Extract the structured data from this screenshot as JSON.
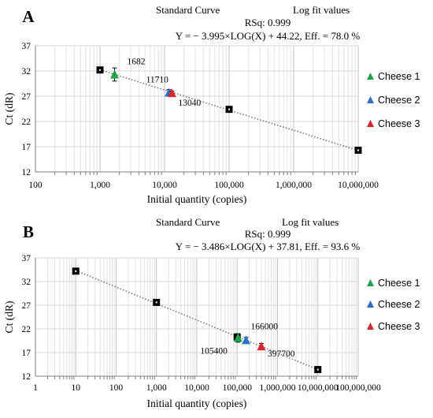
{
  "chart_data": [
    {
      "type": "scatter",
      "panel_label": "A",
      "header": {
        "title": "Standard Curve",
        "subtitle": "Log fit values",
        "rsq": "RSq: 0.999",
        "equation": "Y = − 3.995×LOG(X) + 44.22, Eff. = 78.0 %"
      },
      "xlabel": "Initial quantity (copies)",
      "ylabel": "Ct (dR)",
      "xscale": "log",
      "xlim": [
        100,
        10000000
      ],
      "ylim": [
        12,
        37
      ],
      "xticks": [
        100,
        1000,
        10000,
        100000,
        1000000,
        10000000
      ],
      "xticklabels": [
        "100",
        "1,000",
        "10,000",
        "100,000",
        "1,000,000",
        "10,000,000"
      ],
      "yticks": [
        12,
        17,
        22,
        27,
        32,
        37
      ],
      "yticklabels": [
        "12",
        "17",
        "22",
        "27",
        "32",
        "37"
      ],
      "grid": true,
      "legend_position": "right",
      "fit": {
        "slope": -3.995,
        "intercept": 44.22
      },
      "standards": {
        "x": [
          1000,
          100000,
          10000000
        ],
        "y": [
          32.2,
          24.4,
          16.3
        ]
      },
      "series": [
        {
          "name": "Cheese 1",
          "color": "#1fa34a",
          "x": [
            1682
          ],
          "y": [
            31.3
          ],
          "err": [
            1.3
          ],
          "label": "1682"
        },
        {
          "name": "Cheese 2",
          "color": "#2a6fc4",
          "x": [
            11710
          ],
          "y": [
            27.7
          ],
          "err": [
            0.6
          ],
          "label": "11710"
        },
        {
          "name": "Cheese 3",
          "color": "#d7262e",
          "x": [
            13040
          ],
          "y": [
            27.6
          ],
          "err": [
            0.4
          ],
          "label": "13040"
        }
      ]
    },
    {
      "type": "scatter",
      "panel_label": "B",
      "header": {
        "title": "Standard Curve",
        "subtitle": "Log fit values",
        "rsq": "RSq: 0.999",
        "equation": "Y = − 3.486×LOG(X) + 37.81, Eff. = 93.6 %"
      },
      "xlabel": "Initial quantity (copies)",
      "ylabel": "Ct (dR)",
      "xscale": "log",
      "xlim": [
        1,
        100000000
      ],
      "ylim": [
        12,
        37
      ],
      "xticks": [
        1,
        10,
        100,
        1000,
        10000,
        100000,
        1000000,
        10000000,
        100000000
      ],
      "xticklabels": [
        "1",
        "10",
        "100",
        "1,000",
        "10,000",
        "100,000",
        "1,000,000",
        "10,000,000",
        "100,000,000"
      ],
      "yticks": [
        12,
        17,
        22,
        27,
        32,
        37
      ],
      "yticklabels": [
        "12",
        "17",
        "22",
        "27",
        "32",
        "37"
      ],
      "grid": true,
      "legend_position": "right",
      "fit": {
        "slope": -3.486,
        "intercept": 37.81
      },
      "standards": {
        "x": [
          10,
          1000,
          100000,
          10000000
        ],
        "y": [
          34.2,
          27.6,
          20.3,
          13.4
        ]
      },
      "series": [
        {
          "name": "Cheese 1",
          "color": "#1fa34a",
          "x": [
            105400
          ],
          "y": [
            20.1
          ],
          "err": [
            0.9
          ],
          "label": "105400"
        },
        {
          "name": "Cheese 2",
          "color": "#2a6fc4",
          "x": [
            166000
          ],
          "y": [
            19.6
          ],
          "err": [
            0.6
          ],
          "label": "166000"
        },
        {
          "name": "Cheese 3",
          "color": "#d7262e",
          "x": [
            397700
          ],
          "y": [
            18.3
          ],
          "err": [
            0.6
          ],
          "label": "397700"
        }
      ]
    }
  ]
}
